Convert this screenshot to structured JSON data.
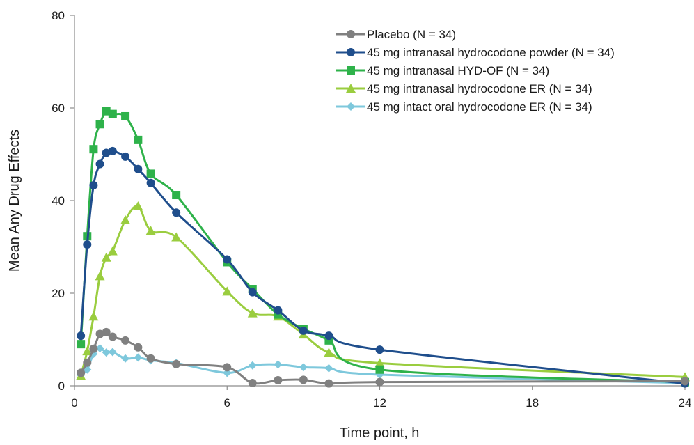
{
  "chart_data": {
    "type": "line",
    "xlabel": "Time point, h",
    "ylabel": "Mean Any Drug Effects",
    "xlim": [
      0,
      24
    ],
    "ylim": [
      0,
      80
    ],
    "xticks": [
      "0",
      "6",
      "12",
      "18",
      "24"
    ],
    "yticks": [
      "0",
      "20",
      "40",
      "60",
      "80"
    ],
    "grid": false,
    "legend_position": "top-right",
    "series": [
      {
        "name": "Placebo (N = 34)",
        "color": "#808080",
        "marker": "circle",
        "x": [
          0.25,
          0.5,
          0.75,
          1,
          1.25,
          1.5,
          2,
          2.5,
          3,
          4,
          6,
          7,
          8,
          9,
          10,
          12,
          24
        ],
        "y": [
          2.8,
          5.0,
          8.0,
          11.2,
          11.6,
          10.6,
          9.8,
          8.3,
          5.9,
          4.7,
          4.0,
          0.6,
          1.2,
          1.3,
          0.5,
          0.8,
          1.0
        ]
      },
      {
        "name": "45 mg intranasal hydrocodone powder (N = 34)",
        "color": "#1f4e8c",
        "marker": "circle",
        "x": [
          0.25,
          0.5,
          0.75,
          1,
          1.25,
          1.5,
          2,
          2.5,
          3,
          4,
          6,
          7,
          8,
          9,
          10,
          12,
          24
        ],
        "y": [
          10.8,
          30.5,
          43.3,
          47.9,
          50.3,
          50.7,
          49.5,
          46.8,
          43.8,
          37.4,
          27.3,
          20.2,
          16.3,
          11.9,
          10.8,
          7.8,
          0.5
        ]
      },
      {
        "name": "45 mg intranasal HYD-OF (N = 34)",
        "color": "#2eb24a",
        "marker": "square",
        "x": [
          0.25,
          0.5,
          0.75,
          1,
          1.25,
          1.5,
          2,
          2.5,
          3,
          4,
          6,
          7,
          8,
          9,
          10,
          12,
          24
        ],
        "y": [
          9.0,
          32.3,
          51.1,
          56.5,
          59.3,
          58.7,
          58.2,
          53.1,
          45.8,
          41.2,
          26.7,
          20.9,
          15.4,
          12.3,
          9.8,
          3.5,
          0.8
        ]
      },
      {
        "name": "45 mg intranasal hydrocodone ER (N = 34)",
        "color": "#9acd3f",
        "marker": "triangle",
        "x": [
          0.25,
          0.5,
          0.75,
          1,
          1.25,
          1.5,
          2,
          2.5,
          3,
          4,
          6,
          7,
          8,
          9,
          10,
          12,
          24
        ],
        "y": [
          2.2,
          7.5,
          15.0,
          23.7,
          27.7,
          29.1,
          35.8,
          38.8,
          33.5,
          32.1,
          20.4,
          15.7,
          15.0,
          11.1,
          7.2,
          4.9,
          1.9
        ]
      },
      {
        "name": "45 mg intact oral hydrocodone ER (N = 34)",
        "color": "#7ec8dc",
        "marker": "diamond",
        "x": [
          0.25,
          0.5,
          0.75,
          1,
          1.25,
          1.5,
          2,
          2.5,
          3,
          4,
          6,
          7,
          8,
          9,
          10,
          12,
          24
        ],
        "y": [
          2.3,
          3.5,
          6.9,
          8.1,
          7.2,
          7.3,
          5.9,
          6.1,
          5.5,
          4.9,
          2.8,
          4.4,
          4.6,
          4.0,
          3.8,
          2.4,
          0.6
        ]
      }
    ]
  }
}
